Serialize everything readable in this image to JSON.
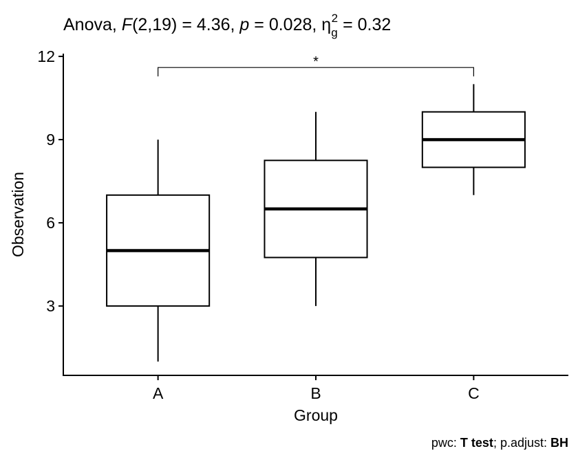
{
  "chart_data": {
    "type": "boxplot",
    "title": {
      "prefix": "Anova, ",
      "stat_symbol": "F",
      "df": "(2,19)",
      "stat_value": " = 4.36, ",
      "p_symbol": "p",
      "p_value": " = 0.028, ",
      "effect_symbol": "η",
      "effect_sub": "g",
      "effect_sup": "2",
      "effect_value": " = 0.32"
    },
    "xlabel": "Group",
    "ylabel": "Observation",
    "categories": [
      "A",
      "B",
      "C"
    ],
    "ylim": [
      0.5,
      12.1
    ],
    "yticks": [
      3,
      6,
      9,
      12
    ],
    "ytick_labels": [
      "3",
      "6",
      "9",
      "12"
    ],
    "boxes": [
      {
        "group": "A",
        "min": 1,
        "q1": 3,
        "median": 5,
        "q3": 7,
        "max": 9
      },
      {
        "group": "B",
        "min": 3,
        "q1": 4.75,
        "median": 6.5,
        "q3": 8.25,
        "max": 10
      },
      {
        "group": "C",
        "min": 7,
        "q1": 8,
        "median": 9,
        "q3": 10,
        "max": 11
      }
    ],
    "comparisons": [
      {
        "group1": "A",
        "group2": "C",
        "label": "*",
        "y": 11.6
      }
    ],
    "caption": {
      "prefix": "pwc: ",
      "test": "T test",
      "middle": "; p.adjust: ",
      "method": "BH"
    }
  }
}
